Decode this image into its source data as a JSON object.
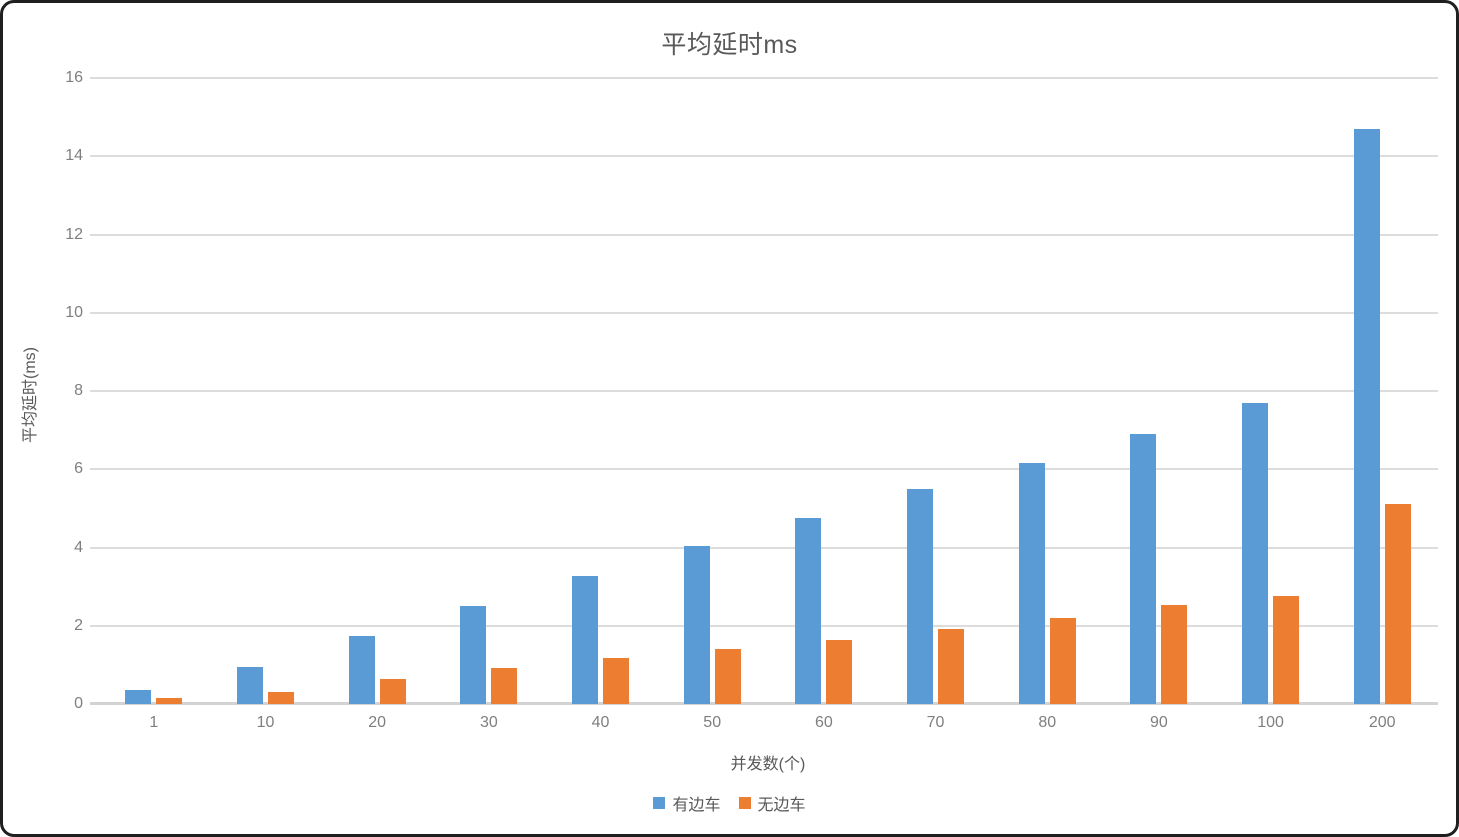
{
  "chart_data": {
    "type": "bar",
    "title": "平均延时ms",
    "xlabel": "并发数(个)",
    "ylabel": "平均延时(ms)",
    "categories": [
      "1",
      "10",
      "20",
      "30",
      "40",
      "50",
      "60",
      "70",
      "80",
      "90",
      "100",
      "200"
    ],
    "series": [
      {
        "name": "有边车",
        "color": "#5B9BD5",
        "values": [
          0.35,
          0.95,
          1.75,
          2.5,
          3.27,
          4.05,
          4.75,
          5.5,
          6.15,
          6.9,
          7.7,
          14.7
        ]
      },
      {
        "name": "无边车",
        "color": "#ED7D31",
        "values": [
          0.15,
          0.3,
          0.63,
          0.92,
          1.18,
          1.4,
          1.63,
          1.92,
          2.2,
          2.53,
          2.75,
          5.1
        ]
      }
    ],
    "ylim": [
      0,
      16
    ],
    "yticks": [
      0,
      2,
      4,
      6,
      8,
      10,
      12,
      14,
      16
    ],
    "grid": true,
    "legend_position": "bottom",
    "colors": {
      "gridline": "#DCDCDC",
      "axis_line": "#D3D3D3",
      "tick_text": "#7F7F7F",
      "title_text": "#595959",
      "frame_border": "#1F1F1F"
    }
  }
}
